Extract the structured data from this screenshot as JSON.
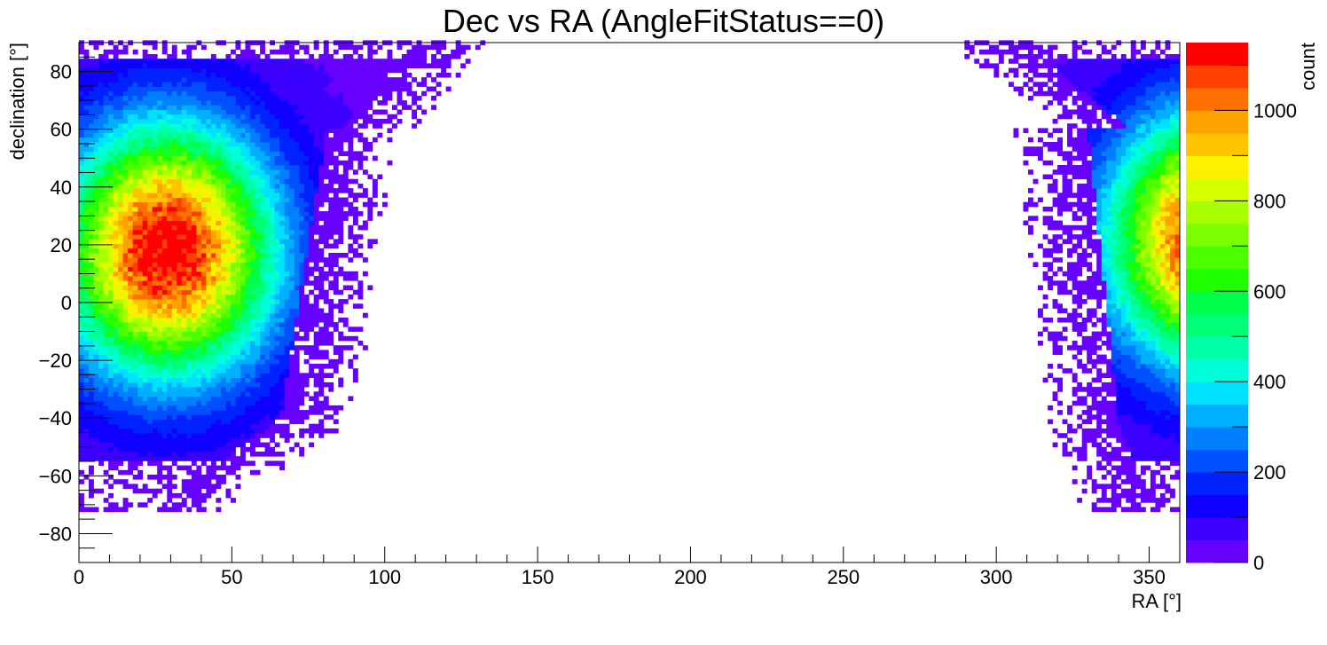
{
  "chart_data": {
    "type": "heatmap",
    "title": "Dec vs RA (AngleFitStatus==0)",
    "xlabel": "RA [°]",
    "ylabel": "declination [°]",
    "zlabel": "count",
    "xlim": [
      0,
      360
    ],
    "ylim": [
      -90,
      90
    ],
    "zlim": [
      0,
      1150
    ],
    "x_ticks": [
      0,
      50,
      100,
      150,
      200,
      250,
      300,
      350
    ],
    "y_ticks": [
      -80,
      -60,
      -40,
      -20,
      0,
      20,
      40,
      60,
      80
    ],
    "z_ticks": [
      0,
      200,
      400,
      600,
      800,
      1000
    ],
    "x_tick_labels": [
      "0",
      "50",
      "100",
      "150",
      "200",
      "250",
      "300",
      "350"
    ],
    "y_tick_labels": [
      "−80",
      "−60",
      "−40",
      "−20",
      "0",
      "20",
      "40",
      "60",
      "80"
    ],
    "z_tick_labels": [
      "0",
      "200",
      "400",
      "600",
      "800",
      "1000"
    ],
    "grid": false,
    "colormap": [
      "#6600ff",
      "#3b00ff",
      "#0f00ff",
      "#0022ff",
      "#0050ff",
      "#0080ff",
      "#00b0ff",
      "#00e0ff",
      "#00ffd8",
      "#00ffa8",
      "#00ff78",
      "#00ff48",
      "#1eff00",
      "#4cff00",
      "#7aff00",
      "#a8ff00",
      "#d6ff00",
      "#fff000",
      "#ffc400",
      "#ffa200",
      "#ff7000",
      "#ff4000",
      "#ff0000"
    ],
    "hotspot": {
      "ra": 29,
      "dec": 18,
      "peak_count": 1150
    },
    "populated_region_note_ra_deg": [
      [
        0,
        135
      ],
      [
        300,
        360
      ]
    ]
  }
}
